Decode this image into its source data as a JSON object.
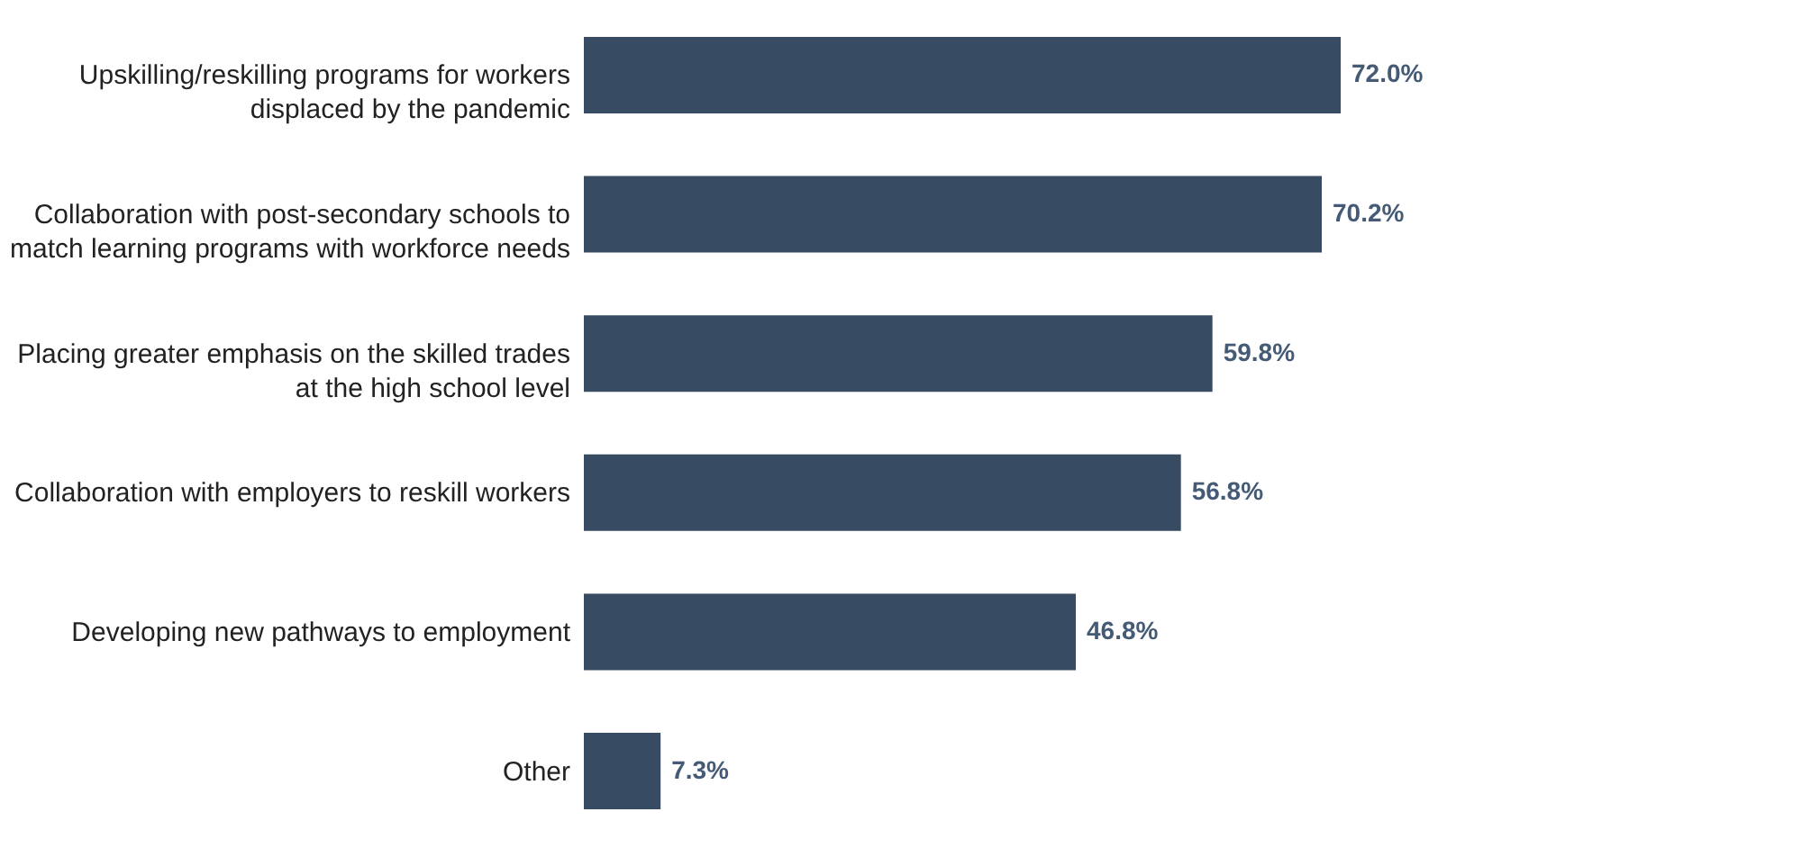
{
  "chart_data": {
    "type": "bar",
    "orientation": "horizontal",
    "categories": [
      "Upskilling/reskilling programs for workers\ndisplaced by the pandemic",
      "Collaboration with post-secondary schools to\nmatch learning programs with workforce needs",
      "Placing greater emphasis on the skilled trades\nat the high school level",
      "Collaboration with employers to reskill workers",
      "Developing new pathways to employment",
      "Other"
    ],
    "values": [
      72.0,
      70.2,
      59.8,
      56.8,
      46.8,
      7.3
    ],
    "color": "#374b63",
    "value_labels": [
      "72.0%",
      "70.2%",
      "59.8%",
      "56.8%",
      "46.8%",
      "7.3%"
    ]
  }
}
